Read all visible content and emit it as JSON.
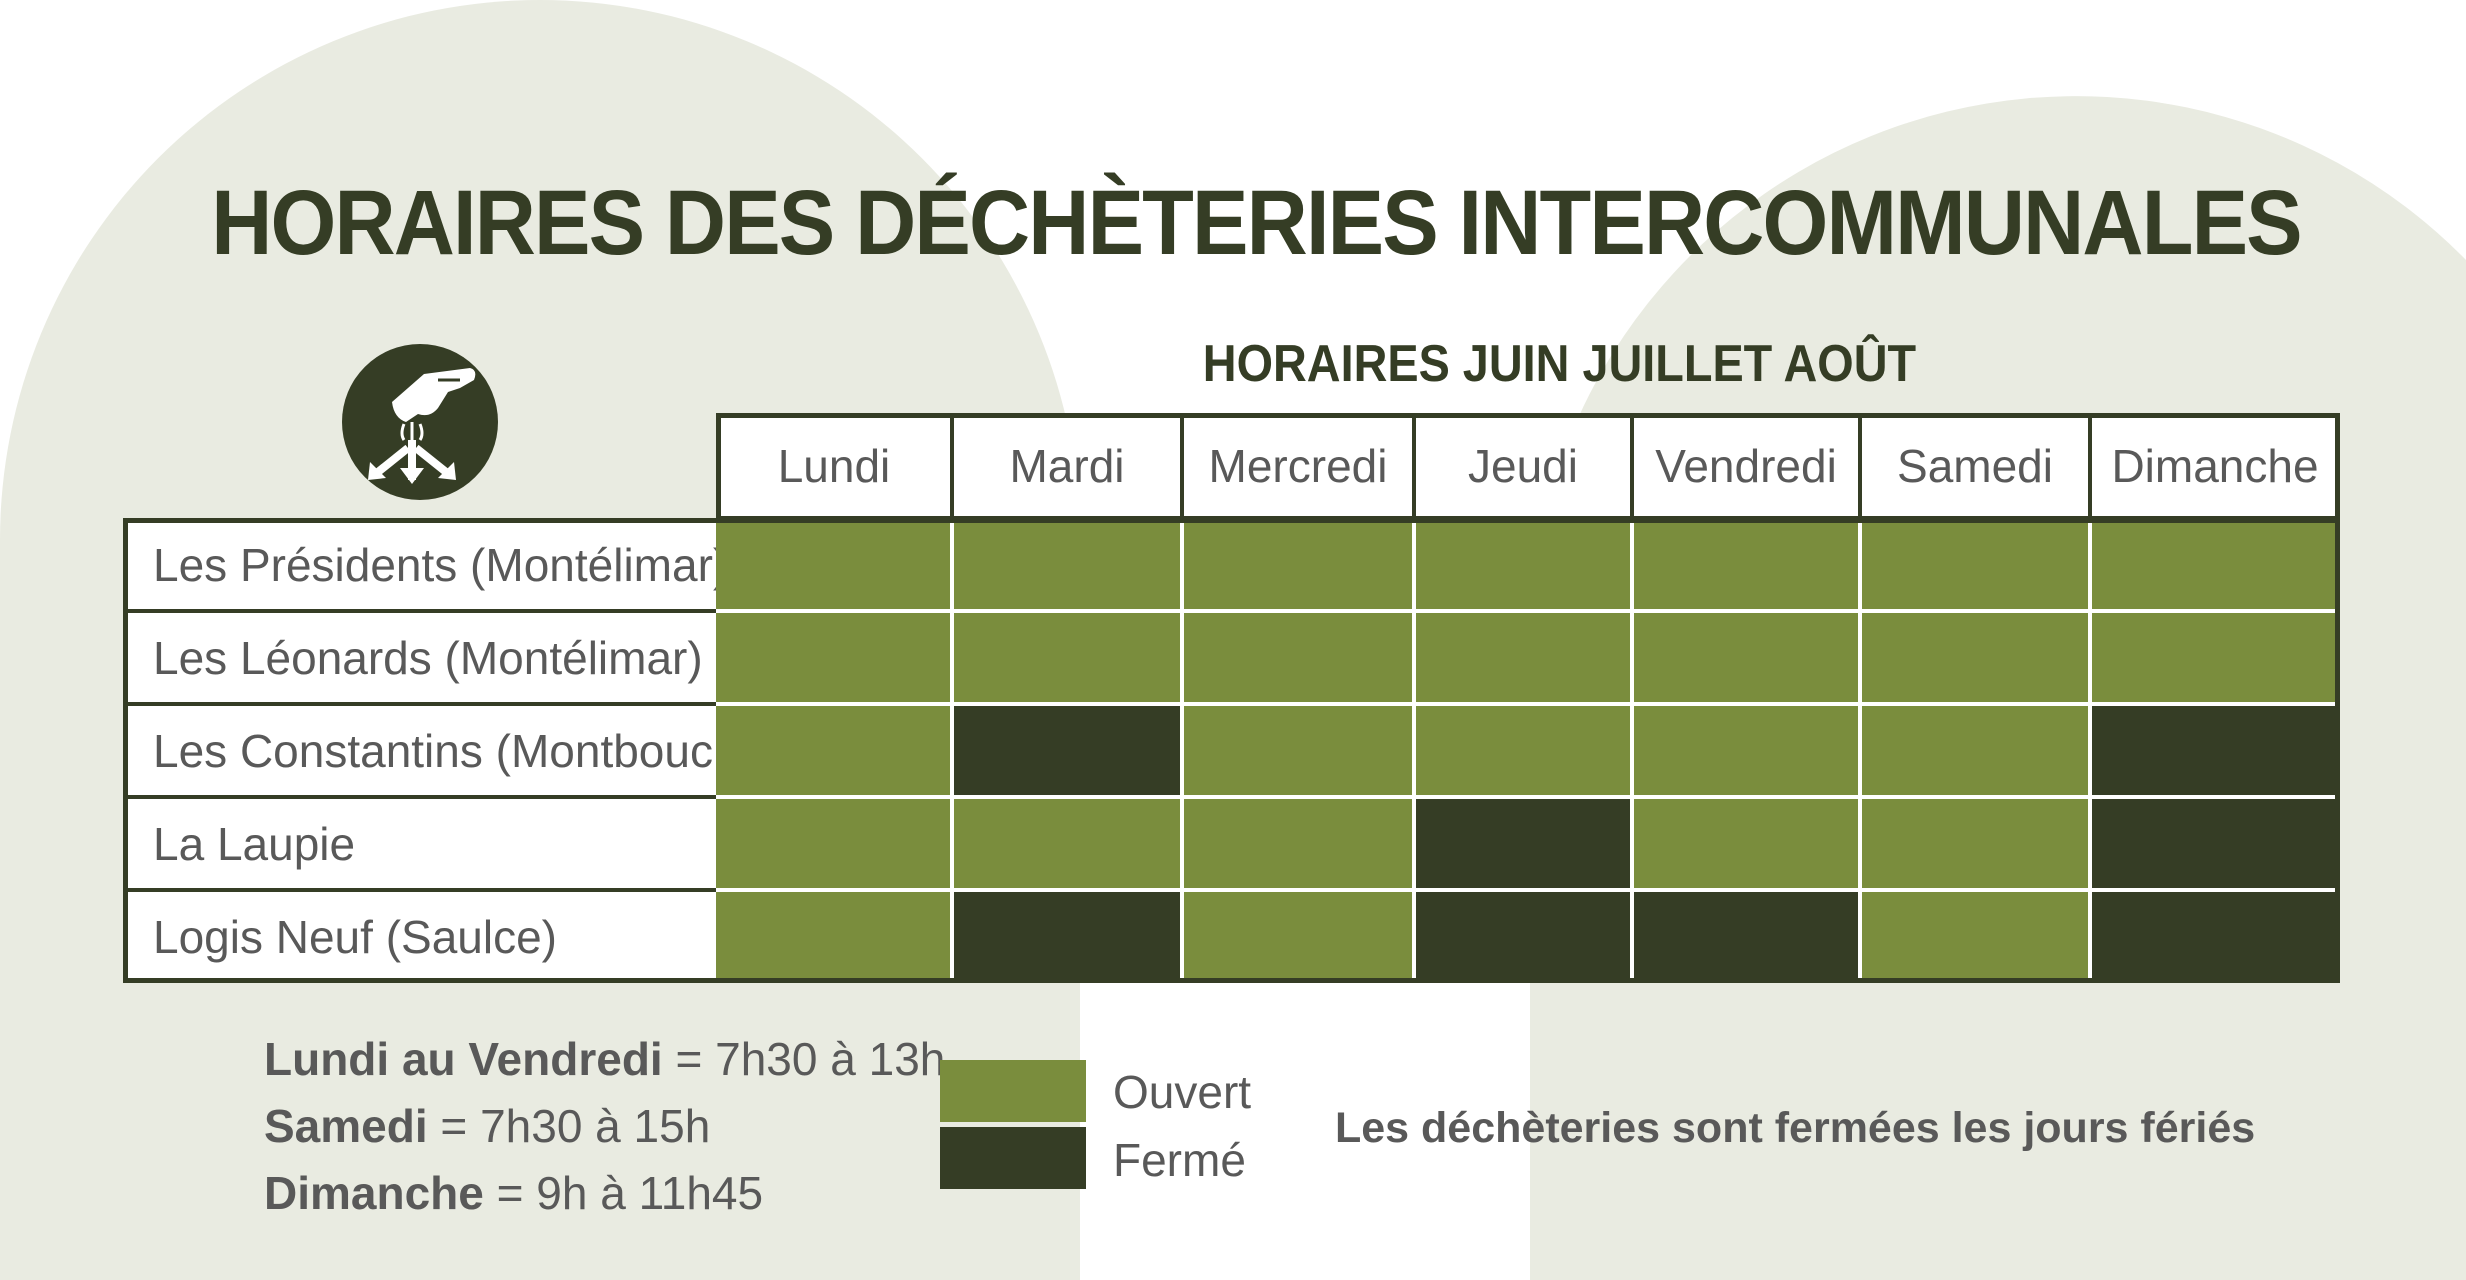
{
  "colors": {
    "open": "#7a8d3d",
    "closed": "#353d25",
    "dark": "#353d25",
    "background_shape": "#e9ebe1",
    "text_gray": "#595959"
  },
  "header": {
    "title": "HORAIRES DES DÉCHÈTERIES INTERCOMMUNALES",
    "subtitle": "HORAIRES JUIN JUILLET AOÛT",
    "logo_icon": "recycling-hand-icon"
  },
  "table": {
    "days": [
      "Lundi",
      "Mardi",
      "Mercredi",
      "Jeudi",
      "Vendredi",
      "Samedi",
      "Dimanche"
    ],
    "rows": [
      {
        "name": "Les Présidents (Montélimar)",
        "status": [
          "open",
          "open",
          "open",
          "open",
          "open",
          "open",
          "open"
        ]
      },
      {
        "name": "Les Léonards (Montélimar)",
        "status": [
          "open",
          "open",
          "open",
          "open",
          "open",
          "open",
          "open"
        ]
      },
      {
        "name": "Les Constantins (Montboucher)",
        "status": [
          "open",
          "closed",
          "open",
          "open",
          "open",
          "open",
          "closed"
        ]
      },
      {
        "name": "La Laupie",
        "status": [
          "open",
          "open",
          "open",
          "closed",
          "open",
          "open",
          "closed"
        ]
      },
      {
        "name": "Logis Neuf (Saulce)",
        "status": [
          "open",
          "closed",
          "open",
          "closed",
          "closed",
          "open",
          "closed"
        ]
      }
    ]
  },
  "schedule": [
    {
      "label": "Lundi au Vendredi",
      "hours": " = 7h30 à 13h"
    },
    {
      "label": "Samedi",
      "hours": " = 7h30 à 15h"
    },
    {
      "label": "Dimanche",
      "hours": " = 9h à 11h45"
    }
  ],
  "legend": {
    "open": "Ouvert",
    "closed": "Fermé"
  },
  "note": "Les déchèteries sont fermées les jours fériés"
}
